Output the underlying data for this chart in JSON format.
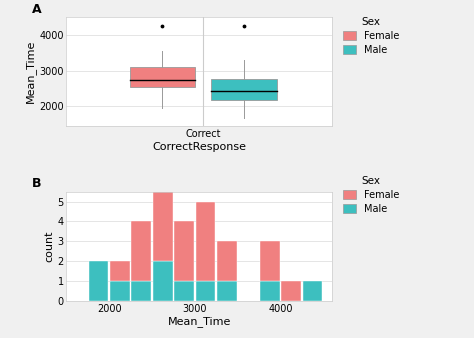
{
  "female_color": "#F08080",
  "male_color": "#3DBFBF",
  "background_color": "#F0F0F0",
  "panel_bg": "#FFFFFF",
  "grid_color": "#E0E0E0",
  "box_female": {
    "q1": 2550,
    "median": 2750,
    "q3": 3100,
    "whisker_low": 1950,
    "whisker_high": 3550,
    "outlier_high": 4250
  },
  "box_male": {
    "q1": 2180,
    "median": 2420,
    "q3": 2760,
    "whisker_low": 1680,
    "whisker_high": 3300,
    "outlier_high": 4250
  },
  "hist_bins": [
    1500,
    1750,
    2000,
    2250,
    2500,
    2750,
    3000,
    3250,
    3500,
    3750,
    4000,
    4250,
    4500
  ],
  "hist_female": [
    0,
    0,
    1,
    3,
    5,
    3,
    4,
    2,
    0,
    2,
    1,
    0
  ],
  "hist_male": [
    0,
    2,
    1,
    1,
    2,
    1,
    1,
    1,
    0,
    1,
    0,
    1
  ],
  "xlabel_top": "CorrectResponse",
  "ylabel_top": "Mean_Time",
  "xlabel_bot": "Mean_Time",
  "ylabel_bot": "count",
  "xtick_top": "Correct",
  "label_A": "A",
  "label_B": "B",
  "yticks_top": [
    2000,
    3000,
    4000
  ],
  "yticks_bot": [
    0,
    1,
    2,
    3,
    4,
    5
  ],
  "xticks_bot": [
    2000,
    3000,
    4000
  ],
  "legend_title": "Sex",
  "legend_female": "Female",
  "legend_male": "Male"
}
